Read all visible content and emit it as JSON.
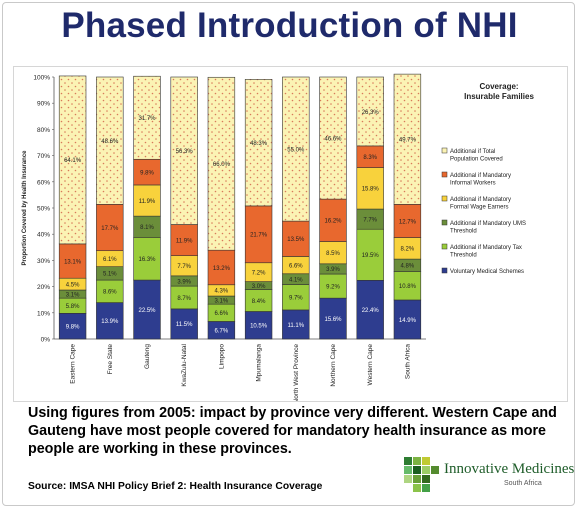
{
  "title": "Phased Introduction of NHI",
  "caption": "Using figures from 2005: impact by province very different. Western Cape and Gauteng have most people covered for mandatory health insurance as more people are working in these provinces.",
  "source": "Source: IMSA NHI Policy Brief 2: Health Insurance Coverage",
  "logo": {
    "name": "Innovative Medicines",
    "sub": "South Africa"
  },
  "chart_data": {
    "type": "bar",
    "stacked": true,
    "title": "Coverage: Insurable Families",
    "xlabel": "",
    "ylabel": "Proportion Covered by Health Insurance",
    "ylim": [
      0,
      100
    ],
    "yticks": [
      "0%",
      "10%",
      "20%",
      "30%",
      "40%",
      "50%",
      "60%",
      "70%",
      "80%",
      "90%",
      "100%"
    ],
    "categories": [
      "Eastern Cape",
      "Free State",
      "Gauteng",
      "KwaZulu-Natal",
      "Limpopo",
      "Mpumalanga",
      "North West Province",
      "Northern Cape",
      "Western Cape",
      "South Africa"
    ],
    "series": [
      {
        "name": "Voluntary Medical Schemes",
        "color": "#2e3d8f",
        "values": [
          9.8,
          13.9,
          22.5,
          11.5,
          6.7,
          10.5,
          11.1,
          15.6,
          22.4,
          14.9
        ]
      },
      {
        "name": "Additional if Mandatory Tax Threshold",
        "color": "#9acd3a",
        "values": [
          5.8,
          8.6,
          16.3,
          8.7,
          6.6,
          8.4,
          9.7,
          9.2,
          19.5,
          10.8
        ]
      },
      {
        "name": "Additional if Mandatory UMS Threshold",
        "color": "#6b8e3a",
        "values": [
          3.1,
          5.1,
          8.1,
          3.9,
          3.1,
          3.0,
          4.1,
          3.9,
          7.7,
          4.8
        ]
      },
      {
        "name": "Additional if Mandatory Formal Wage Earners",
        "color": "#f8d23c",
        "values": [
          4.5,
          6.1,
          11.9,
          7.7,
          4.3,
          7.2,
          6.6,
          8.5,
          15.8,
          8.2
        ]
      },
      {
        "name": "Additional if Mandatory Informal Workers",
        "color": "#e8682e",
        "values": [
          13.1,
          17.7,
          9.8,
          11.9,
          13.2,
          21.7,
          13.5,
          16.2,
          8.3,
          12.7
        ]
      },
      {
        "name": "Additional if Total Population Covered",
        "color": "#fbf3b4",
        "values": [
          64.1,
          48.6,
          31.7,
          56.3,
          66.0,
          48.3,
          55.0,
          46.6,
          26.3,
          49.7
        ]
      }
    ],
    "value_labels": [
      [
        "9.8%",
        "5.8%",
        "3.1%",
        "4.5%",
        "13.1%",
        "64.1%"
      ],
      [
        "13.9%",
        "8.6%",
        "5.1%",
        "6.1%",
        "17.7%",
        "48.6%"
      ],
      [
        "22.5%",
        "16.3%",
        "8.1%",
        "11.9%",
        "9.8%",
        "31.7%"
      ],
      [
        "11.5%",
        "8.7%",
        "3.9%",
        "7.7%",
        "11.9%",
        "56.3%"
      ],
      [
        "6.7%",
        "6.6%",
        "3.1%",
        "4.3%",
        "13.2%",
        "66.0%"
      ],
      [
        "10.5%",
        "8.4%",
        "3.0%",
        "7.2%",
        "21.7%",
        "48.3%"
      ],
      [
        "11.1%",
        "9.7%",
        "4.1%",
        "6.6%",
        "13.5%",
        "55.0%"
      ],
      [
        "15.6%",
        "9.2%",
        "3.9%",
        "8.5%",
        "16.2%",
        "46.6%"
      ],
      [
        "22.4%",
        "19.5%",
        "7.7%",
        "15.8%",
        "8.3%",
        "26.3%"
      ],
      [
        "14.9%",
        "10.8%",
        "4.8%",
        "8.2%",
        "12.7%",
        "49.7%"
      ]
    ],
    "legend_position": "right"
  }
}
